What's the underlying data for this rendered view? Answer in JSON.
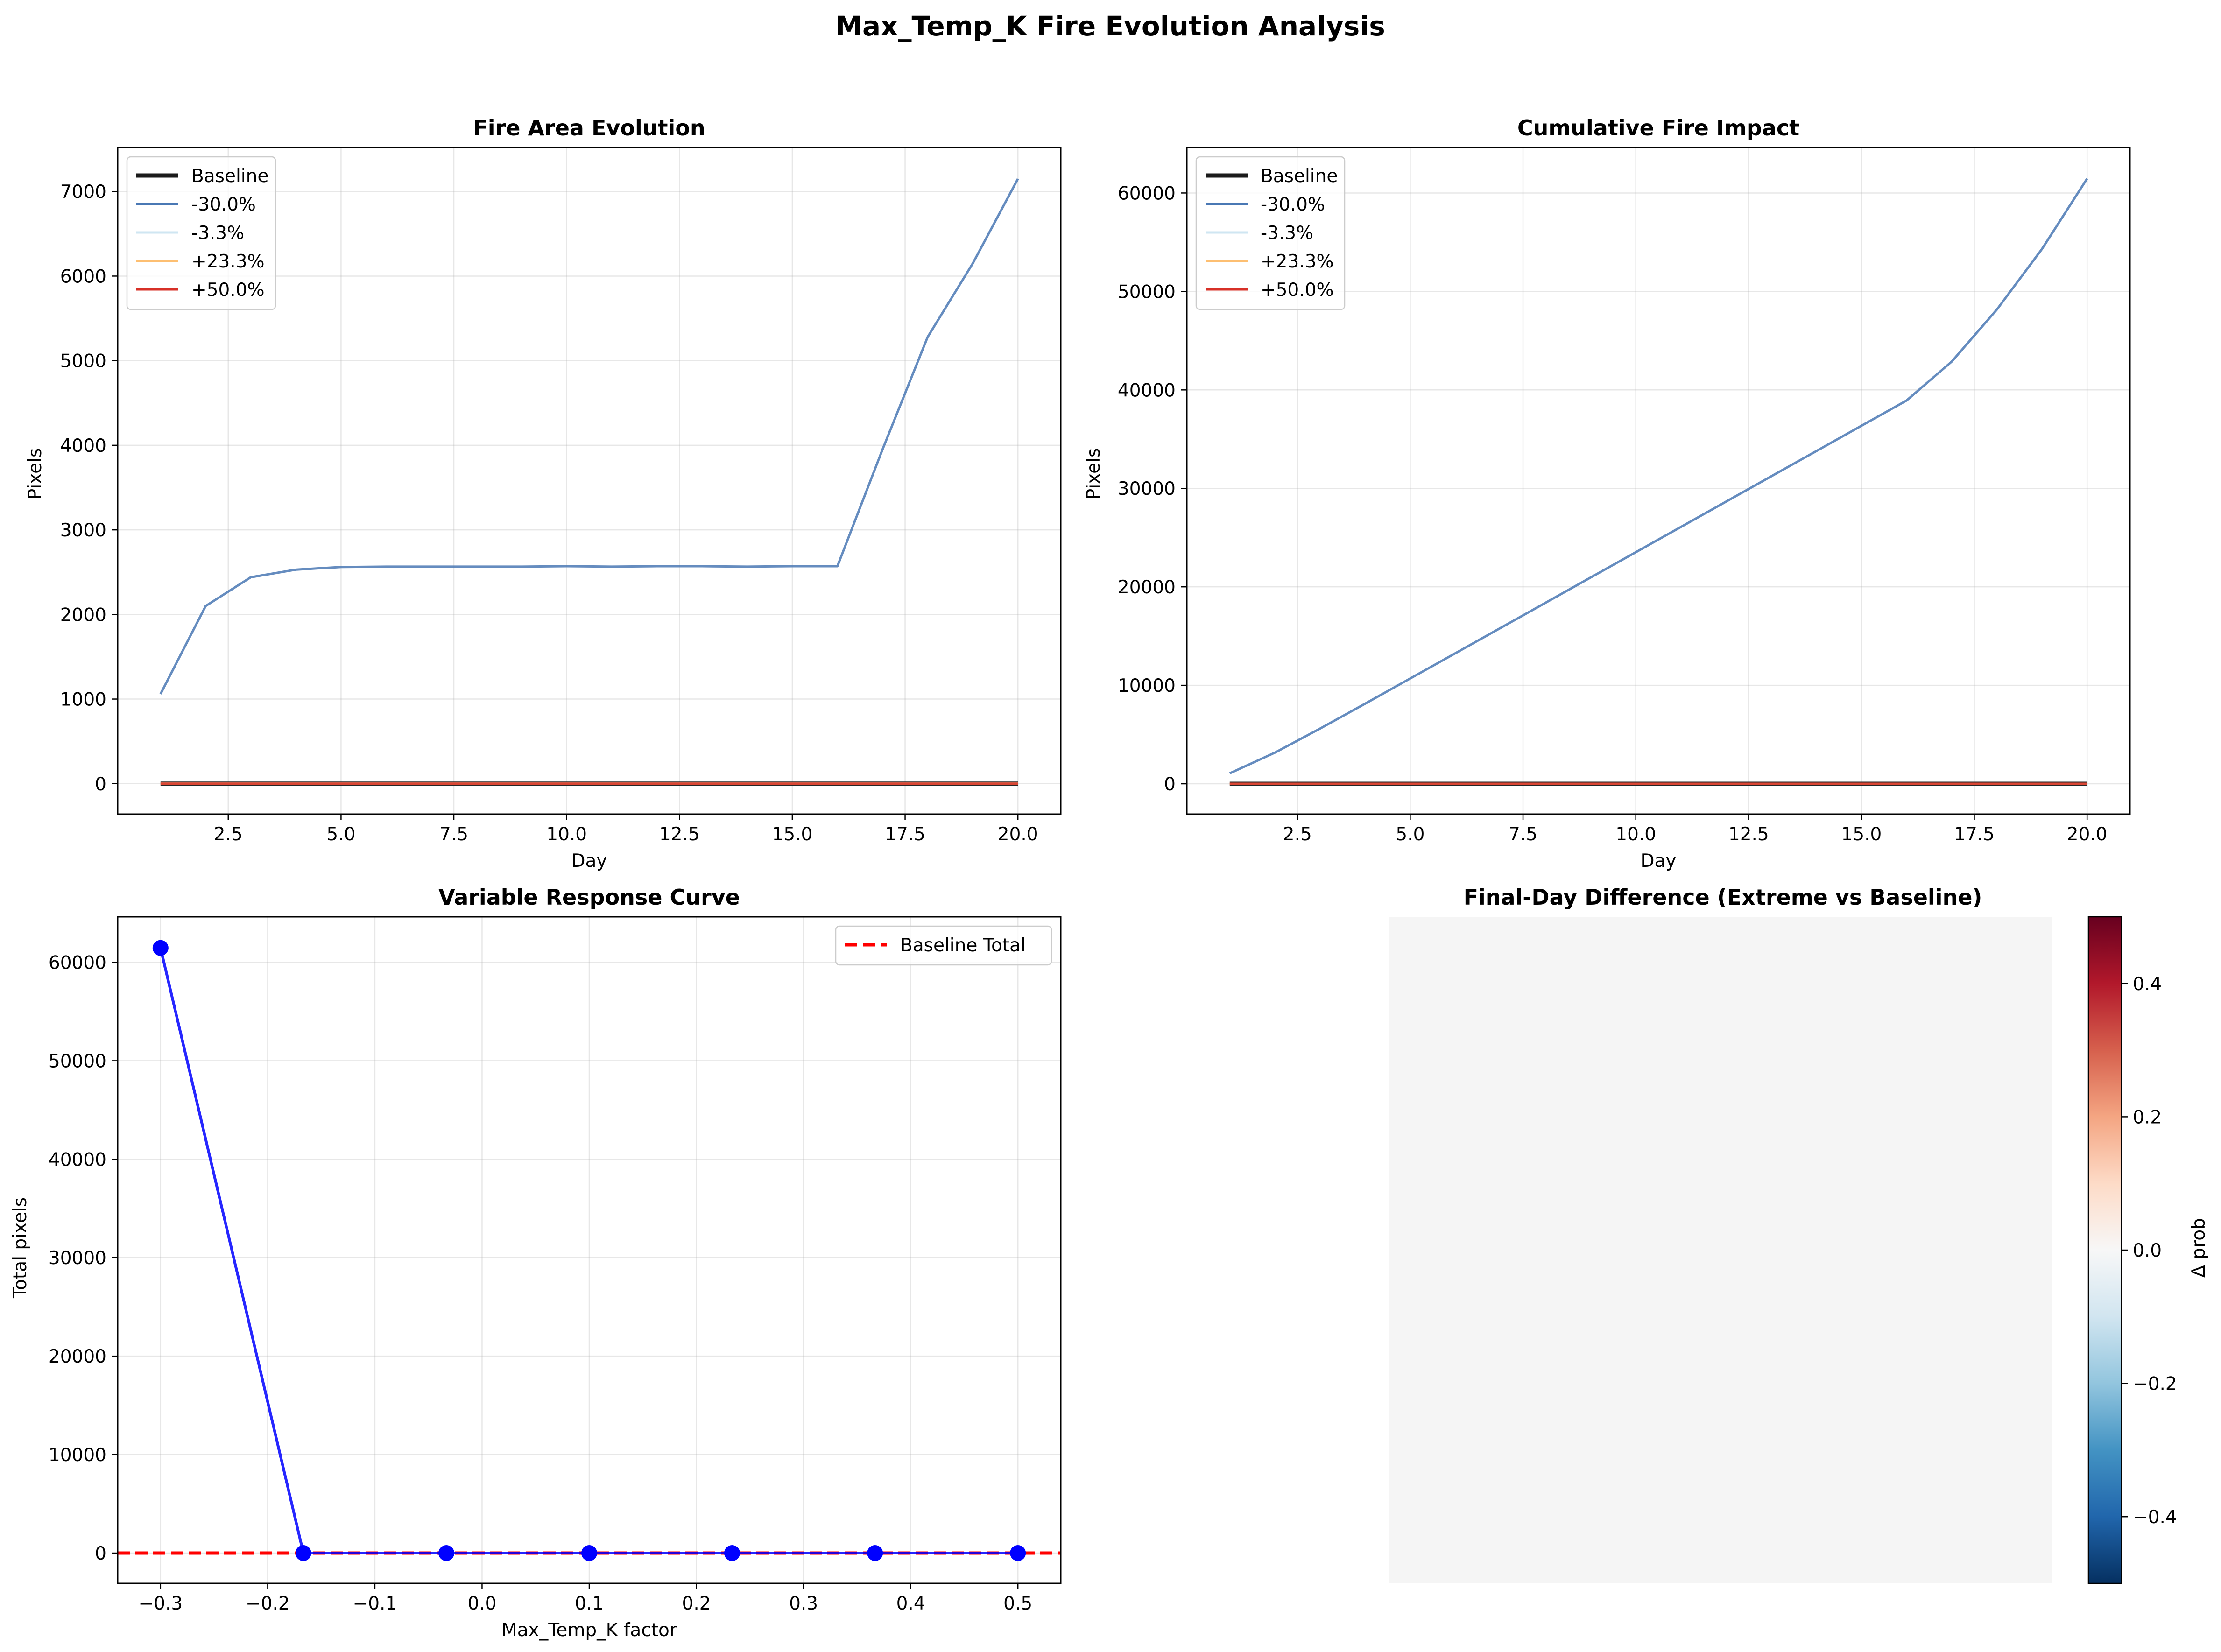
{
  "suptitle": "Max_Temp_K Fire Evolution Analysis",
  "colors": {
    "baseline": "#1a1a1a",
    "m30": "#4a78b4",
    "m3": "#cfe6f2",
    "p23": "#fdbf72",
    "p50": "#d73027",
    "response_line": "#0000ff",
    "baseline_total": "#ff0000",
    "heatmap_fill": "#f5f5f5"
  },
  "chart_data": [
    {
      "type": "line",
      "title": "Fire Area Evolution",
      "xlabel": "Day",
      "ylabel": "Pixels",
      "xlim": [
        0.05,
        20.95
      ],
      "ylim": [
        -360,
        7520
      ],
      "xticks": [
        2.5,
        5.0,
        7.5,
        10.0,
        12.5,
        15.0,
        17.5,
        20.0
      ],
      "xtick_labels": [
        "2.5",
        "5.0",
        "7.5",
        "10.0",
        "12.5",
        "15.0",
        "17.5",
        "20.0"
      ],
      "yticks": [
        0,
        1000,
        2000,
        3000,
        4000,
        5000,
        6000,
        7000
      ],
      "ytick_labels": [
        "0",
        "1000",
        "2000",
        "3000",
        "4000",
        "5000",
        "6000",
        "7000"
      ],
      "grid": true,
      "legend_position": "upper-left",
      "x": [
        1,
        2,
        3,
        4,
        5,
        6,
        7,
        8,
        9,
        10,
        11,
        12,
        13,
        14,
        15,
        16,
        17,
        18,
        19,
        20
      ],
      "series": [
        {
          "name": "Baseline",
          "color_key": "baseline",
          "width": 9,
          "values": [
            0,
            0,
            0,
            0,
            0,
            0,
            0,
            0,
            0,
            0,
            0,
            0,
            0,
            0,
            0,
            0,
            0,
            0,
            0,
            0
          ]
        },
        {
          "name": "-30.0%",
          "color_key": "m30",
          "width": 5,
          "values": [
            1060,
            2100,
            2440,
            2530,
            2560,
            2565,
            2565,
            2565,
            2565,
            2570,
            2565,
            2570,
            2570,
            2565,
            2570,
            2570,
            3950,
            5280,
            6150,
            7150
          ]
        },
        {
          "name": "-3.3%",
          "color_key": "m3",
          "width": 5,
          "values": [
            0,
            0,
            0,
            0,
            0,
            0,
            0,
            0,
            0,
            0,
            0,
            0,
            0,
            0,
            0,
            0,
            0,
            0,
            0,
            0
          ]
        },
        {
          "name": "+23.3%",
          "color_key": "p23",
          "width": 5,
          "values": [
            0,
            0,
            0,
            0,
            0,
            0,
            0,
            0,
            0,
            0,
            0,
            0,
            0,
            0,
            0,
            0,
            0,
            0,
            0,
            0
          ]
        },
        {
          "name": "+50.0%",
          "color_key": "p50",
          "width": 5,
          "values": [
            0,
            0,
            0,
            0,
            0,
            0,
            0,
            0,
            0,
            0,
            0,
            0,
            0,
            0,
            0,
            0,
            0,
            0,
            0,
            0
          ]
        }
      ]
    },
    {
      "type": "line",
      "title": "Cumulative Fire Impact",
      "xlabel": "Day",
      "ylabel": "Pixels",
      "xlim": [
        0.05,
        20.95
      ],
      "ylim": [
        -3080,
        64620
      ],
      "xticks": [
        2.5,
        5.0,
        7.5,
        10.0,
        12.5,
        15.0,
        17.5,
        20.0
      ],
      "xtick_labels": [
        "2.5",
        "5.0",
        "7.5",
        "10.0",
        "12.5",
        "15.0",
        "17.5",
        "20.0"
      ],
      "yticks": [
        0,
        10000,
        20000,
        30000,
        40000,
        50000,
        60000
      ],
      "ytick_labels": [
        "0",
        "10000",
        "20000",
        "30000",
        "40000",
        "50000",
        "60000"
      ],
      "grid": true,
      "legend_position": "upper-left",
      "x": [
        1,
        2,
        3,
        4,
        5,
        6,
        7,
        8,
        9,
        10,
        11,
        12,
        13,
        14,
        15,
        16,
        17,
        18,
        19,
        20
      ],
      "series": [
        {
          "name": "Baseline",
          "color_key": "baseline",
          "width": 9,
          "values": [
            0,
            0,
            0,
            0,
            0,
            0,
            0,
            0,
            0,
            0,
            0,
            0,
            0,
            0,
            0,
            0,
            0,
            0,
            0,
            0
          ]
        },
        {
          "name": "-30.0%",
          "color_key": "m30",
          "width": 5,
          "values": [
            1060,
            3160,
            5600,
            8130,
            10690,
            13255,
            15820,
            18385,
            20950,
            23520,
            26085,
            28655,
            31225,
            33790,
            36360,
            38930,
            42880,
            48160,
            54310,
            61460
          ]
        },
        {
          "name": "-3.3%",
          "color_key": "m3",
          "width": 5,
          "values": [
            0,
            0,
            0,
            0,
            0,
            0,
            0,
            0,
            0,
            0,
            0,
            0,
            0,
            0,
            0,
            0,
            0,
            0,
            0,
            0
          ]
        },
        {
          "name": "+23.3%",
          "color_key": "p23",
          "width": 5,
          "values": [
            0,
            0,
            0,
            0,
            0,
            0,
            0,
            0,
            0,
            0,
            0,
            0,
            0,
            0,
            0,
            0,
            0,
            0,
            0,
            0
          ]
        },
        {
          "name": "+50.0%",
          "color_key": "p50",
          "width": 5,
          "values": [
            0,
            0,
            0,
            0,
            0,
            0,
            0,
            0,
            0,
            0,
            0,
            0,
            0,
            0,
            0,
            0,
            0,
            0,
            0,
            0
          ]
        }
      ]
    },
    {
      "type": "line",
      "title": "Variable Response Curve",
      "xlabel": "Max_Temp_K factor",
      "ylabel": "Total pixels",
      "xlim": [
        -0.34,
        0.54
      ],
      "ylim": [
        -3080,
        64620
      ],
      "xticks": [
        -0.3,
        -0.2,
        -0.1,
        0.0,
        0.1,
        0.2,
        0.3,
        0.4,
        0.5
      ],
      "xtick_labels": [
        "−0.3",
        "−0.2",
        "−0.1",
        "0.0",
        "0.1",
        "0.2",
        "0.3",
        "0.4",
        "0.5"
      ],
      "yticks": [
        0,
        10000,
        20000,
        30000,
        40000,
        50000,
        60000
      ],
      "ytick_labels": [
        "0",
        "10000",
        "20000",
        "30000",
        "40000",
        "50000",
        "60000"
      ],
      "grid": true,
      "legend_position": "upper-right",
      "x": [
        -0.3,
        -0.1667,
        -0.0333,
        0.1,
        0.2333,
        0.3667,
        0.5
      ],
      "series": [
        {
          "name": "",
          "color_key": "response_line",
          "width": 6,
          "marker": "circle",
          "values": [
            61460,
            0,
            0,
            0,
            0,
            0,
            0
          ]
        }
      ],
      "hlines": [
        {
          "name": "Baseline Total",
          "value": 0,
          "color_key": "baseline_total",
          "dashed": true
        }
      ]
    },
    {
      "type": "heatmap",
      "title": "Final-Day Difference (Extreme vs Baseline)",
      "value_uniform": 0.0,
      "colorbar": {
        "label": "Δ prob",
        "vmin": -0.5,
        "vmax": 0.5,
        "ticks": [
          -0.4,
          -0.2,
          0.0,
          0.2,
          0.4
        ],
        "tick_labels": [
          "−0.4",
          "−0.2",
          "0.0",
          "0.2",
          "0.4"
        ],
        "stops": [
          "#67001f",
          "#b2182b",
          "#d6604d",
          "#f4a582",
          "#fddbc7",
          "#f7f7f7",
          "#d1e5f0",
          "#92c5de",
          "#4393c3",
          "#2166ac",
          "#053061"
        ]
      }
    }
  ]
}
